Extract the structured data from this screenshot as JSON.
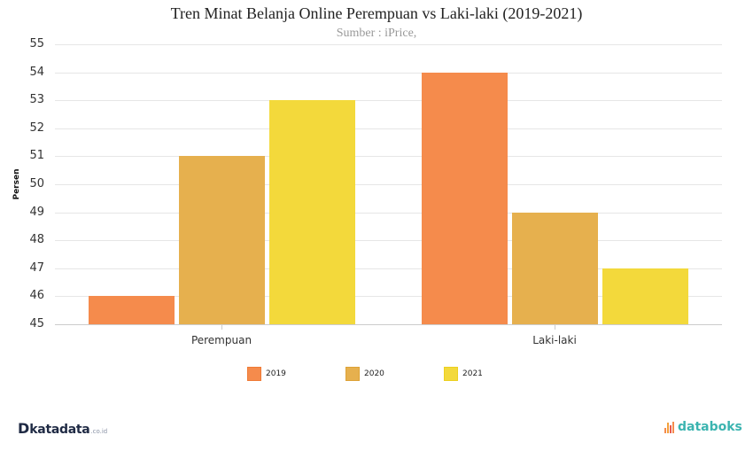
{
  "chart_data": {
    "type": "bar",
    "title": "Tren Minat Belanja Online Perempuan vs Laki-laki (2019-2021)",
    "subtitle": "Sumber : iPrice,",
    "xlabel": "",
    "ylabel": "Persen",
    "ylim": [
      45,
      55
    ],
    "yticks": [
      "55",
      "54",
      "53",
      "52",
      "51",
      "50",
      "49",
      "48",
      "47",
      "46",
      "45"
    ],
    "categories": [
      "Perempuan",
      "Laki-laki"
    ],
    "series": [
      {
        "name": "2019",
        "values": [
          46,
          54
        ],
        "color": "#f58b4c"
      },
      {
        "name": "2020",
        "values": [
          51,
          49
        ],
        "color": "#e6b04e"
      },
      {
        "name": "2021",
        "values": [
          53,
          47
        ],
        "color": "#f3d93b"
      }
    ],
    "grid": true,
    "legend_position": "bottom"
  },
  "branding": {
    "left_logo": {
      "mark": "D",
      "name": "katadata",
      "suffix": ".co.id"
    },
    "right_logo": {
      "name": "databoks"
    }
  }
}
